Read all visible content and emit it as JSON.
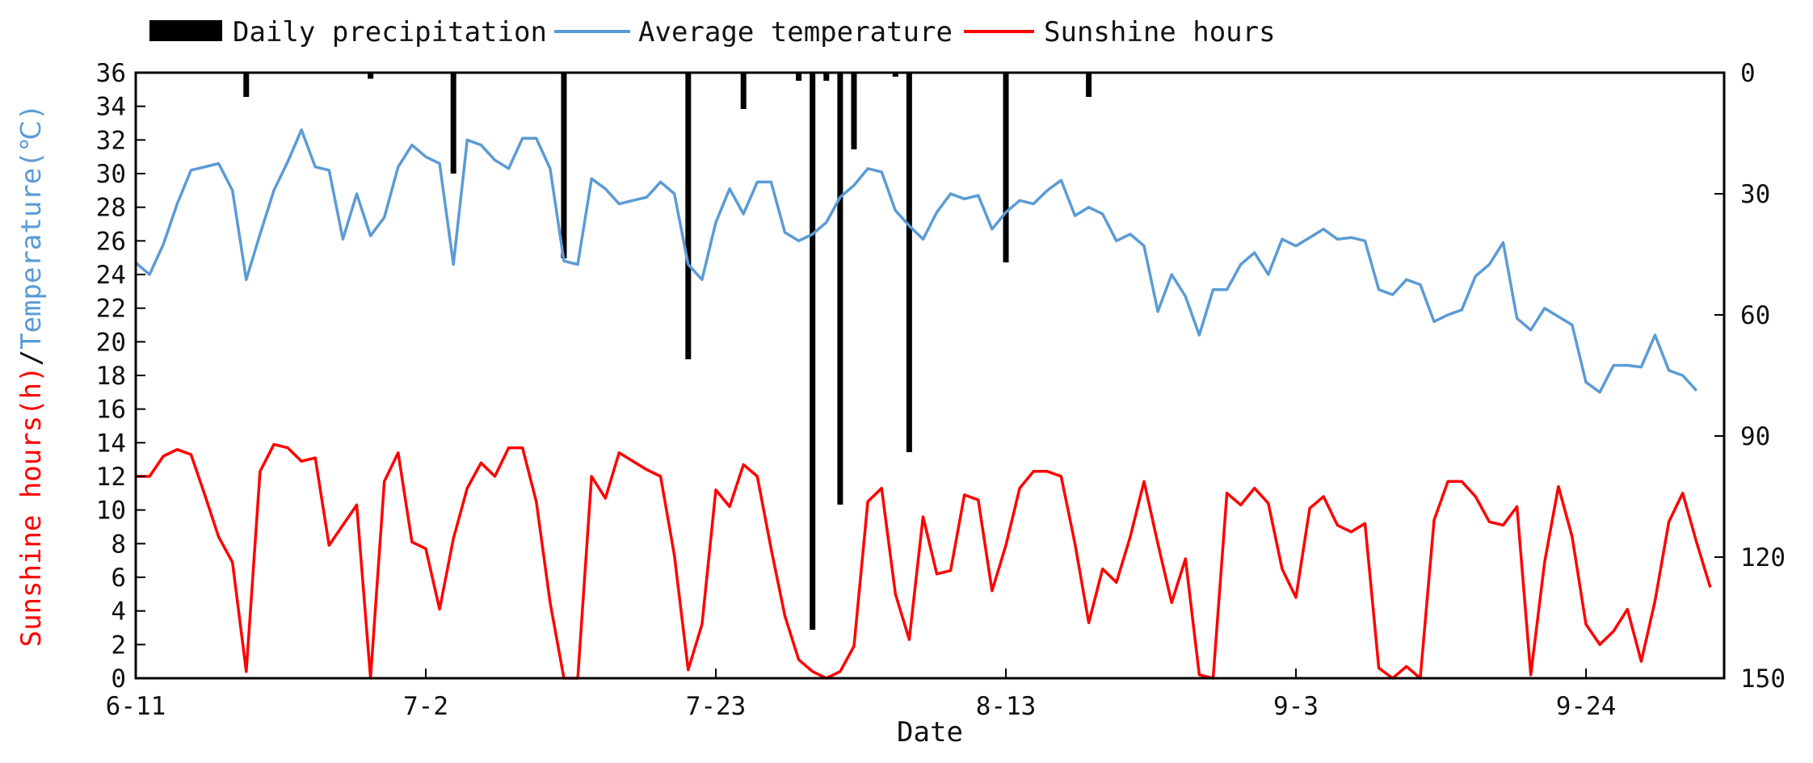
{
  "chart_data": {
    "type": "line",
    "xlabel": "Date",
    "ylabel_left_parts": [
      "Sunshine hours(h)",
      "/",
      "Temperature(℃)"
    ],
    "ylabel_right": "",
    "x_tick_labels": [
      "6-11",
      "7-2",
      "7-23",
      "8-13",
      "9-3",
      "9-24"
    ],
    "x_tick_day_index": [
      0,
      21,
      42,
      63,
      84,
      105
    ],
    "x_range": [
      0,
      115
    ],
    "ylim_left": [
      0,
      36
    ],
    "ylim_right": [
      0,
      150
    ],
    "right_axis_inverted": true,
    "left_ticks": [
      0,
      2,
      4,
      6,
      8,
      10,
      12,
      14,
      16,
      18,
      20,
      22,
      24,
      26,
      28,
      30,
      32,
      34,
      36
    ],
    "right_ticks": [
      0,
      30,
      60,
      90,
      120,
      150
    ],
    "legend": [
      {
        "label": "Daily precipitation",
        "type": "bar",
        "color": "#000000"
      },
      {
        "label": "Average temperature",
        "type": "line",
        "color": "#5b9bd5"
      },
      {
        "label": "Sunshine hours",
        "type": "line",
        "color": "#ff0000"
      }
    ],
    "series": [
      {
        "name": "Average temperature",
        "axis": "left",
        "color": "#5b9bd5",
        "values": [
          24.7,
          24.0,
          25.8,
          28.2,
          30.2,
          30.4,
          30.6,
          29.0,
          23.7,
          26.4,
          29.0,
          30.7,
          32.6,
          30.4,
          30.2,
          26.1,
          28.8,
          26.3,
          27.4,
          30.4,
          31.7,
          31.0,
          30.6,
          24.6,
          32.0,
          31.7,
          30.8,
          30.3,
          32.1,
          32.1,
          30.3,
          24.8,
          24.6,
          29.7,
          29.1,
          28.2,
          28.4,
          28.6,
          29.5,
          28.8,
          24.6,
          23.7,
          27.1,
          29.1,
          27.6,
          29.5,
          29.5,
          26.5,
          26.0,
          26.4,
          27.1,
          28.6,
          29.3,
          30.3,
          30.1,
          27.8,
          26.9,
          26.1,
          27.7,
          28.8,
          28.5,
          28.7,
          26.7,
          27.7,
          28.4,
          28.2,
          29.0,
          29.6,
          27.5,
          28.0,
          27.6,
          26.0,
          26.4,
          25.7,
          21.8,
          24.0,
          22.7,
          20.4,
          23.1,
          23.1,
          24.6,
          25.3,
          24.0,
          26.1,
          25.7,
          26.2,
          26.7,
          26.1,
          26.2,
          26.0,
          23.1,
          22.8,
          23.7,
          23.4,
          21.2,
          21.6,
          21.9,
          23.9,
          24.6,
          25.9,
          21.4,
          20.7,
          22.0,
          21.5,
          21.0,
          17.6,
          17.0,
          18.6,
          18.6,
          18.5,
          20.4,
          18.3,
          18.0,
          17.1
        ]
      },
      {
        "name": "Sunshine hours",
        "axis": "left",
        "color": "#ff0000",
        "values": [
          12.0,
          12.0,
          13.2,
          13.6,
          13.3,
          10.9,
          8.4,
          6.9,
          0.4,
          12.3,
          13.9,
          13.7,
          12.9,
          13.1,
          7.9,
          9.1,
          10.3,
          0.0,
          11.7,
          13.4,
          8.1,
          7.7,
          4.1,
          8.3,
          11.3,
          12.8,
          12.0,
          13.7,
          13.7,
          10.5,
          4.5,
          0.0,
          0.0,
          12.0,
          10.7,
          13.4,
          12.9,
          12.4,
          12.0,
          7.3,
          0.5,
          3.2,
          11.2,
          10.2,
          12.7,
          12.0,
          7.7,
          3.7,
          1.1,
          0.4,
          0.0,
          0.4,
          1.9,
          10.5,
          11.3,
          5.0,
          2.3,
          9.6,
          6.2,
          6.4,
          10.9,
          10.6,
          5.2,
          7.9,
          11.3,
          12.3,
          12.3,
          12.0,
          8.0,
          3.3,
          6.5,
          5.7,
          8.4,
          11.7,
          8.0,
          4.5,
          7.1,
          0.2,
          0.0,
          11.0,
          10.3,
          11.3,
          10.4,
          6.5,
          4.8,
          10.1,
          10.8,
          9.1,
          8.7,
          9.2,
          0.6,
          0.0,
          0.7,
          0.0,
          9.4,
          11.7,
          11.7,
          10.8,
          9.3,
          9.1,
          10.2,
          0.2,
          6.9,
          11.4,
          8.4,
          3.2,
          2.0,
          2.8,
          4.1,
          1.0,
          4.6,
          9.3,
          11.0,
          8.1,
          5.4
        ]
      },
      {
        "name": "Daily precipitation",
        "axis": "right",
        "type": "bar",
        "color": "#000000",
        "values": [
          0,
          0,
          0,
          0,
          0,
          0,
          0,
          0,
          6,
          0,
          0,
          0,
          0,
          0,
          0,
          0,
          0,
          1.5,
          0,
          0,
          0,
          0,
          0,
          25,
          0,
          0,
          0,
          0,
          0,
          0,
          0,
          46,
          0,
          0,
          0,
          0,
          0,
          0,
          0,
          0,
          71,
          0,
          0,
          0,
          9,
          0,
          0,
          0,
          2,
          138,
          2,
          107,
          19,
          0,
          0,
          1,
          94,
          0,
          0,
          0,
          0,
          0,
          0,
          47,
          0,
          0,
          0,
          0,
          0,
          6,
          0,
          0,
          0,
          0,
          0,
          0,
          0,
          0,
          0,
          0,
          0,
          0,
          0,
          0,
          0,
          0,
          0,
          0,
          0,
          0,
          0,
          0,
          0,
          0,
          0,
          0,
          0,
          0,
          0,
          0,
          0,
          0,
          0,
          0,
          0,
          0,
          0,
          0,
          0,
          0,
          0,
          0,
          0,
          0,
          0
        ]
      }
    ]
  }
}
